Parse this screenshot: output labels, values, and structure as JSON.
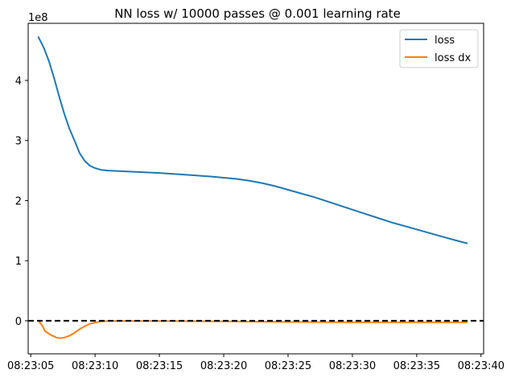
{
  "chart_data": {
    "type": "line",
    "title": "NN loss w/ 10000 passes @ 0.001 learning rate",
    "xlabel": "",
    "ylabel": "",
    "y_offset_label": "1e8",
    "x_tick_labels": [
      "08:23:05",
      "08:23:10",
      "08:23:15",
      "08:23:20",
      "08:23:25",
      "08:23:30",
      "08:23:35",
      "08:23:40"
    ],
    "x_ticks": [
      5,
      10,
      15,
      20,
      25,
      30,
      35,
      40
    ],
    "y_tick_labels": [
      "0",
      "1",
      "2",
      "3",
      "4"
    ],
    "y_ticks": [
      0,
      1,
      2,
      3,
      4
    ],
    "xlim": [
      4.8,
      40.2
    ],
    "ylim": [
      -0.55,
      4.95
    ],
    "grid": false,
    "legend": "top-right",
    "reference_line": {
      "y": 0,
      "style": "dashed",
      "color": "#000000"
    },
    "series": [
      {
        "name": "loss",
        "color": "#1f77b4",
        "x": [
          5.6,
          6.0,
          6.4,
          6.8,
          7.2,
          7.6,
          8.0,
          8.4,
          8.8,
          9.2,
          9.6,
          10.0,
          10.5,
          11.0,
          12.0,
          13.0,
          15.0,
          17.0,
          19.0,
          20.0,
          21.0,
          22.0,
          23.0,
          24.0,
          25.0,
          26.0,
          27.0,
          28.0,
          29.0,
          30.0,
          31.0,
          32.0,
          33.0,
          34.0,
          35.0,
          36.0,
          37.0,
          38.0,
          38.9
        ],
        "y": [
          4.72,
          4.55,
          4.33,
          4.05,
          3.74,
          3.45,
          3.2,
          3.0,
          2.79,
          2.66,
          2.58,
          2.54,
          2.51,
          2.5,
          2.49,
          2.48,
          2.46,
          2.43,
          2.4,
          2.38,
          2.36,
          2.33,
          2.29,
          2.24,
          2.18,
          2.12,
          2.06,
          1.99,
          1.92,
          1.85,
          1.78,
          1.71,
          1.64,
          1.58,
          1.52,
          1.46,
          1.4,
          1.34,
          1.29
        ]
      },
      {
        "name": "loss dx",
        "color": "#ff7f0e",
        "x": [
          5.6,
          5.9,
          6.1,
          6.5,
          7.0,
          7.3,
          7.6,
          8.0,
          8.4,
          8.8,
          9.2,
          9.6,
          10.0,
          10.5,
          11.0,
          12.0,
          15.0,
          20.0,
          25.0,
          30.0,
          35.0,
          38.9
        ],
        "y": [
          0.0,
          -0.08,
          -0.17,
          -0.23,
          -0.28,
          -0.29,
          -0.28,
          -0.25,
          -0.2,
          -0.14,
          -0.09,
          -0.05,
          -0.03,
          -0.01,
          -0.005,
          -0.003,
          -0.005,
          -0.01,
          -0.02,
          -0.025,
          -0.025,
          -0.025
        ]
      }
    ]
  }
}
